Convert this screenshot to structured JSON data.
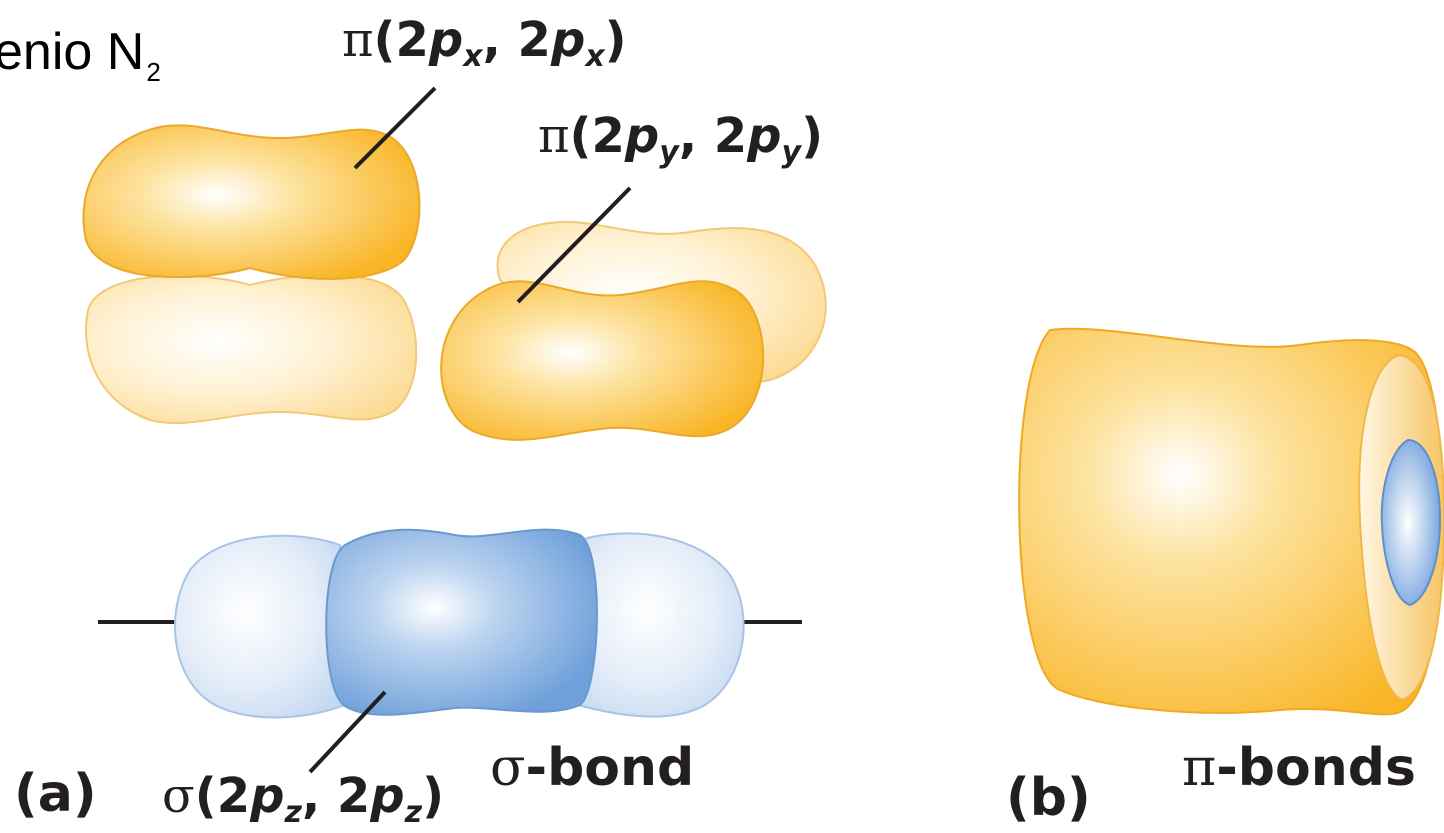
{
  "title": {
    "text": "enio N",
    "subscript": "2"
  },
  "labels": {
    "pi_x": {
      "greek": "π",
      "open": "(2",
      "p1": "p",
      "s1": "x",
      "comma": ", 2",
      "p2": "p",
      "s2": "x",
      "close": ")"
    },
    "pi_y": {
      "greek": "π",
      "open": "(2",
      "p1": "p",
      "s1": "y",
      "comma": ", 2",
      "p2": "p",
      "s2": "y",
      "close": ")"
    },
    "sigma_z": {
      "greek": "σ",
      "open": "(2",
      "p1": "p",
      "s1": "z",
      "comma": ", 2",
      "p2": "p",
      "s2": "z",
      "close": ")"
    },
    "sigma_bond": {
      "greek": "σ",
      "text": "-bond"
    },
    "pi_bonds": {
      "greek": "π",
      "text": "-bonds"
    }
  },
  "panels": {
    "a": "(a)",
    "b": "(b)"
  },
  "colors": {
    "orange_dark": "#f9b526",
    "orange_light": "#fde6b0",
    "blue_dark": "#74a6dc",
    "blue_light": "#d7e4f6",
    "leader": "#231f20"
  }
}
